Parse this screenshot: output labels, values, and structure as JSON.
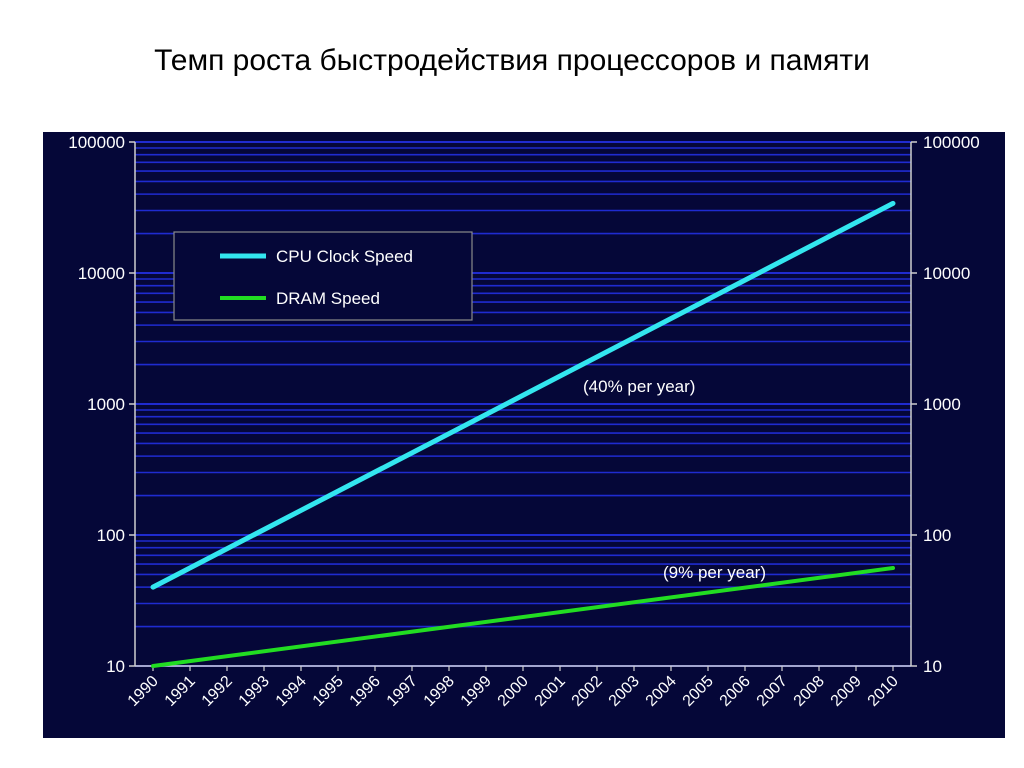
{
  "slide": {
    "title": "Темп роста быстродействия процессоров и памяти"
  },
  "colors": {
    "background": "#050738",
    "gridline": "#1f2bd0",
    "axis": "#cfcfcf",
    "text": "#ffffff",
    "cpu": "#33e6ef",
    "dram": "#22dd22"
  },
  "chart_data": {
    "type": "line",
    "title": "",
    "xlabel": "",
    "ylabel": "",
    "y_scale": "log",
    "ylim": [
      10,
      100000
    ],
    "y_ticks": [
      "10",
      "100",
      "1000",
      "10000",
      "100000"
    ],
    "y_tick_values": [
      10,
      100,
      1000,
      10000,
      100000
    ],
    "secondary_y_axis": true,
    "x_categories": [
      "1990",
      "1991",
      "1992",
      "1993",
      "1994",
      "1995",
      "1996",
      "1997",
      "1998",
      "1999",
      "2000",
      "2001",
      "2002",
      "2003",
      "2004",
      "2005",
      "2006",
      "2007",
      "2008",
      "2009",
      "2010"
    ],
    "grid": true,
    "legend": {
      "placement": "top-left",
      "entries": [
        "CPU Clock Speed",
        "DRAM Speed"
      ]
    },
    "series": [
      {
        "name": "CPU Clock Speed",
        "x": [
          1990,
          2010
        ],
        "y": [
          40,
          34000
        ]
      },
      {
        "name": "DRAM Speed",
        "x": [
          1990,
          2010
        ],
        "y": [
          10,
          56
        ]
      }
    ],
    "annotations": [
      {
        "text": "(40% per year)",
        "series": "CPU Clock Speed"
      },
      {
        "text": "(9% per year)",
        "series": "DRAM Speed"
      }
    ]
  }
}
